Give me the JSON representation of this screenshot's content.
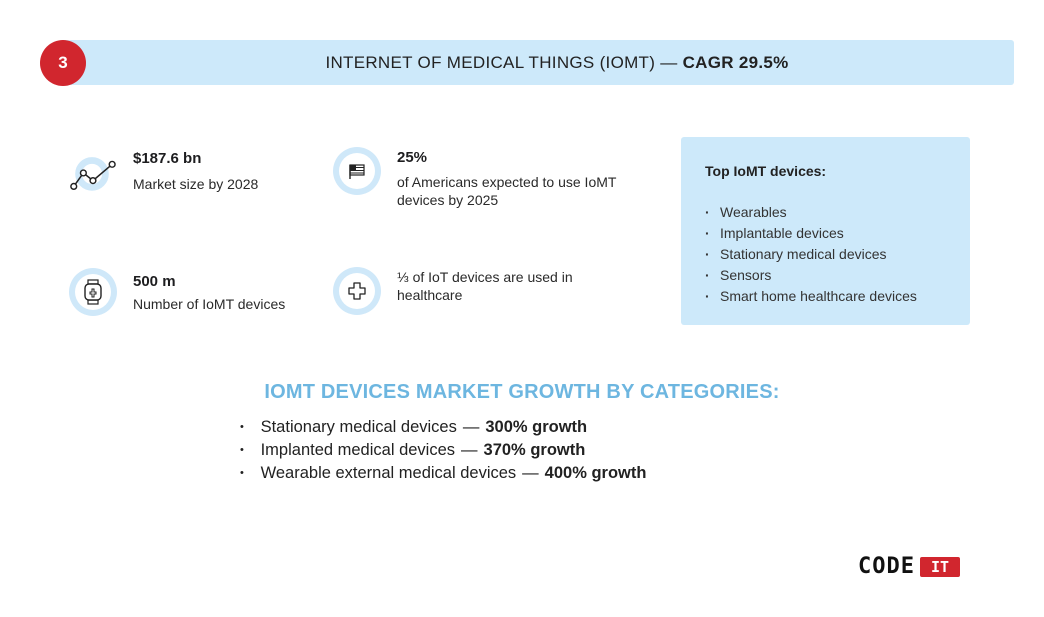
{
  "header": {
    "number": "3",
    "title": "INTERNET OF MEDICAL THINGS (IOMT) —",
    "cagr": "CAGR 29.5%"
  },
  "stats": [
    {
      "title": "$187.6 bn",
      "text": "Market size by 2028",
      "icon": "line-chart-icon"
    },
    {
      "title": "25%",
      "text": "of Americans expected to use IoMT devices by 2025",
      "icon": "flag-icon"
    },
    {
      "title": "500 m",
      "text": "Number of IoMT devices",
      "icon": "smartwatch-icon"
    },
    {
      "title": "",
      "text": "⅓ of IoT devices are used in healthcare",
      "icon": "medical-cross-icon"
    }
  ],
  "top_devices": {
    "title": "Top IoMT devices:",
    "items": [
      "Wearables",
      "Implantable devices",
      "Stationary medical devices",
      "Sensors",
      "Smart home healthcare devices"
    ]
  },
  "growth": {
    "heading": "IOMT DEVICES MARKET GROWTH BY CATEGORIES:",
    "items": [
      {
        "label": "Stationary medical devices",
        "sep": "—",
        "value": "300% growth"
      },
      {
        "label": "Implanted medical devices",
        "sep": "—",
        "value": "370% growth"
      },
      {
        "label": "Wearable external medical devices",
        "sep": "—",
        "value": "400% growth"
      }
    ]
  },
  "logo": {
    "code": "CODE",
    "it": "IT"
  },
  "colors": {
    "accent_red": "#d1262e",
    "light_blue": "#cde9fa",
    "heading_blue": "#6db6e0"
  }
}
